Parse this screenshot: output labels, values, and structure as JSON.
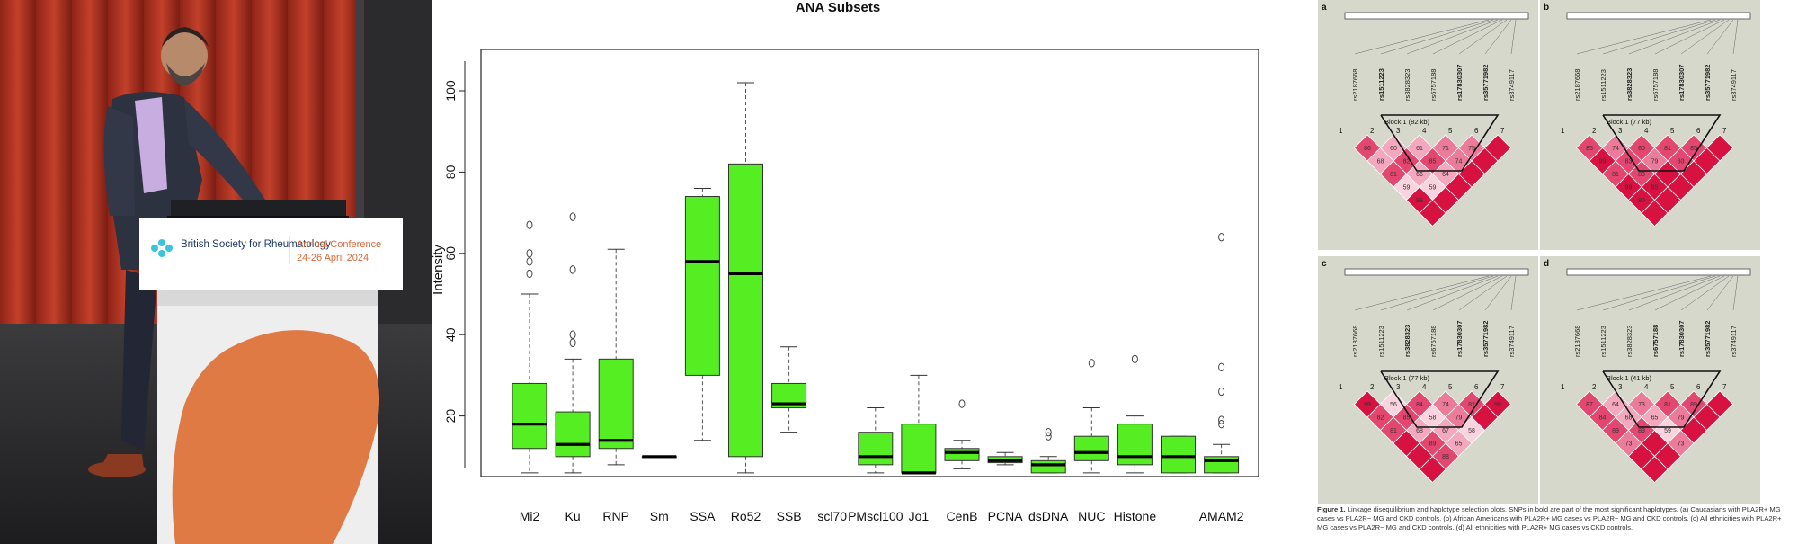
{
  "photo": {
    "podium_org": "British Society for Rheumatology",
    "podium_event": "Annual Conference",
    "podium_dates": "24-26 April 2024"
  },
  "chart_data": {
    "type": "boxplot",
    "title": "ANA Subsets",
    "xlabel": "",
    "ylabel": "Intensity",
    "ylim": [
      0,
      105
    ],
    "yticks": [
      20,
      40,
      60,
      80,
      100
    ],
    "grid": false,
    "box_color": "#55ee22",
    "categories": [
      "Mi2",
      "Ku",
      "RNP",
      "Sm",
      "SSA",
      "Ro52",
      "SSB",
      "scl70",
      "PMscl100",
      "Jo1",
      "CenB",
      "PCNA",
      "dsDNA",
      "NUC",
      "Histone",
      "",
      "AMAM2"
    ],
    "boxes": [
      {
        "min": 6,
        "q1": 12,
        "median": 18,
        "q3": 28,
        "max": 50,
        "outliers": [
          55,
          58,
          60,
          67
        ]
      },
      {
        "min": 6,
        "q1": 10,
        "median": 13,
        "q3": 21,
        "max": 34,
        "outliers": [
          38,
          40,
          56,
          69
        ]
      },
      {
        "min": 8,
        "q1": 12,
        "median": 14,
        "q3": 34,
        "max": 61,
        "outliers": []
      },
      {
        "min": 10,
        "q1": 10,
        "median": 10,
        "q3": 10,
        "max": 10,
        "outliers": []
      },
      {
        "min": 14,
        "q1": 30,
        "median": 58,
        "q3": 74,
        "max": 76,
        "outliers": []
      },
      {
        "min": 6,
        "q1": 10,
        "median": 55,
        "q3": 82,
        "max": 102,
        "outliers": []
      },
      {
        "min": 16,
        "q1": 22,
        "median": 23,
        "q3": 28,
        "max": 37,
        "outliers": []
      },
      null,
      {
        "min": 6,
        "q1": 8,
        "median": 10,
        "q3": 16,
        "max": 22,
        "outliers": []
      },
      {
        "min": 6,
        "q1": 6,
        "median": 6,
        "q3": 18,
        "max": 30,
        "outliers": []
      },
      {
        "min": 7,
        "q1": 9,
        "median": 11,
        "q3": 12,
        "max": 14,
        "outliers": [
          23
        ]
      },
      {
        "min": 8,
        "q1": 8.5,
        "median": 9,
        "q3": 10,
        "max": 11,
        "outliers": []
      },
      {
        "min": 6,
        "q1": 6,
        "median": 8,
        "q3": 9,
        "max": 10,
        "outliers": [
          15,
          16
        ]
      },
      {
        "min": 6,
        "q1": 9,
        "median": 11,
        "q3": 15,
        "max": 22,
        "outliers": [
          33
        ]
      },
      {
        "min": 6,
        "q1": 8,
        "median": 10,
        "q3": 18,
        "max": 20,
        "outliers": [
          34
        ]
      },
      {
        "min": 6,
        "q1": 6,
        "median": 10,
        "q3": 15,
        "max": 15,
        "outliers": []
      },
      {
        "min": 6,
        "q1": 6,
        "median": 9,
        "q3": 10,
        "max": 13,
        "outliers": [
          18,
          19,
          26,
          32,
          64
        ]
      }
    ]
  },
  "ld_figure": {
    "panels": [
      {
        "letter": "a",
        "block": "Block 1 (82 kb)",
        "snps": [
          "rs2187668",
          "rs1511223",
          "rs3828323",
          "rs6757188",
          "rs17830307",
          "rs35771982",
          "rs3749117"
        ],
        "bold": [
          1,
          4,
          5
        ],
        "values": [
          [
            "",
            "",
            "",
            "",
            "",
            ""
          ],
          [
            "66",
            "",
            "",
            "",
            "",
            ""
          ],
          [
            "",
            "",
            "",
            "",
            "",
            ""
          ],
          [
            "",
            "",
            "",
            "",
            "",
            ""
          ],
          [
            "",
            "",
            "",
            "",
            "",
            ""
          ],
          [
            "",
            "",
            "",
            "",
            "",
            ""
          ]
        ]
      },
      {
        "letter": "b",
        "block": "Block 1 (77 kb)",
        "snps": [
          "rs2187668",
          "rs1511223",
          "rs3828323",
          "rs6757188",
          "rs17830307",
          "rs35771982",
          "rs3749117"
        ],
        "bold": [
          2,
          4,
          5
        ],
        "values": [
          [
            "",
            "",
            "",
            "",
            "",
            ""
          ],
          [
            "",
            "",
            "",
            "",
            "",
            ""
          ],
          [
            "",
            "",
            "",
            "",
            "",
            ""
          ],
          [
            "",
            "",
            "",
            "",
            "",
            ""
          ],
          [
            "",
            "",
            "",
            "",
            "",
            ""
          ],
          [
            "",
            "",
            "",
            "",
            "",
            ""
          ]
        ]
      },
      {
        "letter": "c",
        "block": "Block 1 (77 kb)",
        "snps": [
          "rs2187668",
          "rs1511223",
          "rs3828323",
          "rs6757188",
          "rs17830307",
          "rs35771982",
          "rs3749117"
        ],
        "bold": [
          2,
          4,
          5
        ],
        "values": [
          [
            "",
            "",
            "",
            "",
            "",
            ""
          ],
          [
            "",
            "",
            "",
            "",
            "",
            ""
          ],
          [
            "",
            "",
            "",
            "",
            "",
            ""
          ],
          [
            "",
            "",
            "",
            "",
            "",
            ""
          ],
          [
            "",
            "",
            "",
            "",
            "",
            ""
          ],
          [
            "",
            "",
            "",
            "",
            "",
            ""
          ]
        ]
      },
      {
        "letter": "d",
        "block": "Block 1 (41 kb)",
        "snps": [
          "rs2187668",
          "rs1511223",
          "rs3828323",
          "rs6757188",
          "rs17830307",
          "rs35771982",
          "rs3749117"
        ],
        "bold": [
          3,
          4,
          5
        ],
        "values": [
          [
            "",
            "",
            "",
            "",
            "",
            ""
          ],
          [
            "",
            "",
            "",
            "",
            "",
            ""
          ],
          [
            "",
            "",
            "",
            "",
            "",
            ""
          ],
          [
            "",
            "",
            "",
            "",
            "",
            ""
          ],
          [
            "",
            "",
            "",
            "",
            "",
            ""
          ],
          [
            "",
            "",
            "",
            "",
            "",
            ""
          ]
        ]
      }
    ],
    "cell_values": {
      "a": [
        "86",
        "60",
        "61",
        "71",
        "75",
        "",
        "68",
        "82",
        "85",
        "74",
        "",
        "81",
        "66",
        "64",
        "",
        "59",
        "59",
        "",
        "99"
      ],
      "b": [
        "85",
        "74",
        "80",
        "81",
        "85",
        "",
        "99",
        "83",
        "79",
        "80",
        "",
        "81",
        "83",
        "",
        "",
        "99",
        "95",
        "",
        "90"
      ],
      "c": [
        "99",
        "56",
        "84",
        "74",
        "82",
        "99",
        "82",
        "85",
        "58",
        "79",
        "",
        "81",
        "68",
        "67",
        "58",
        "",
        "89",
        "65",
        "",
        "88"
      ],
      "d": [
        "87",
        "64",
        "73",
        "81",
        "89",
        "",
        "84",
        "68",
        "65",
        "79",
        "",
        "89",
        "89",
        "59",
        "",
        "73",
        "",
        "73",
        ""
      ]
    },
    "positions": [
      "1",
      "2",
      "3",
      "4",
      "5",
      "6",
      "7"
    ],
    "caption_label": "Figure 1.",
    "caption_text": "Linkage disequilibrium and haplotype selection plots. SNPs in bold are part of the most significant haplotypes. (a) Caucasians with PLA2R+ MG cases vs PLA2R− MG and CKD controls. (b) African Americans with PLA2R+ MG cases vs PLA2R− MG and CKD controls. (c) All ethnicities with PLA2R+ MG cases vs PLA2R− MG and CKD controls. (d) All ethnicities with PLA2R+ MG cases vs CKD controls."
  }
}
